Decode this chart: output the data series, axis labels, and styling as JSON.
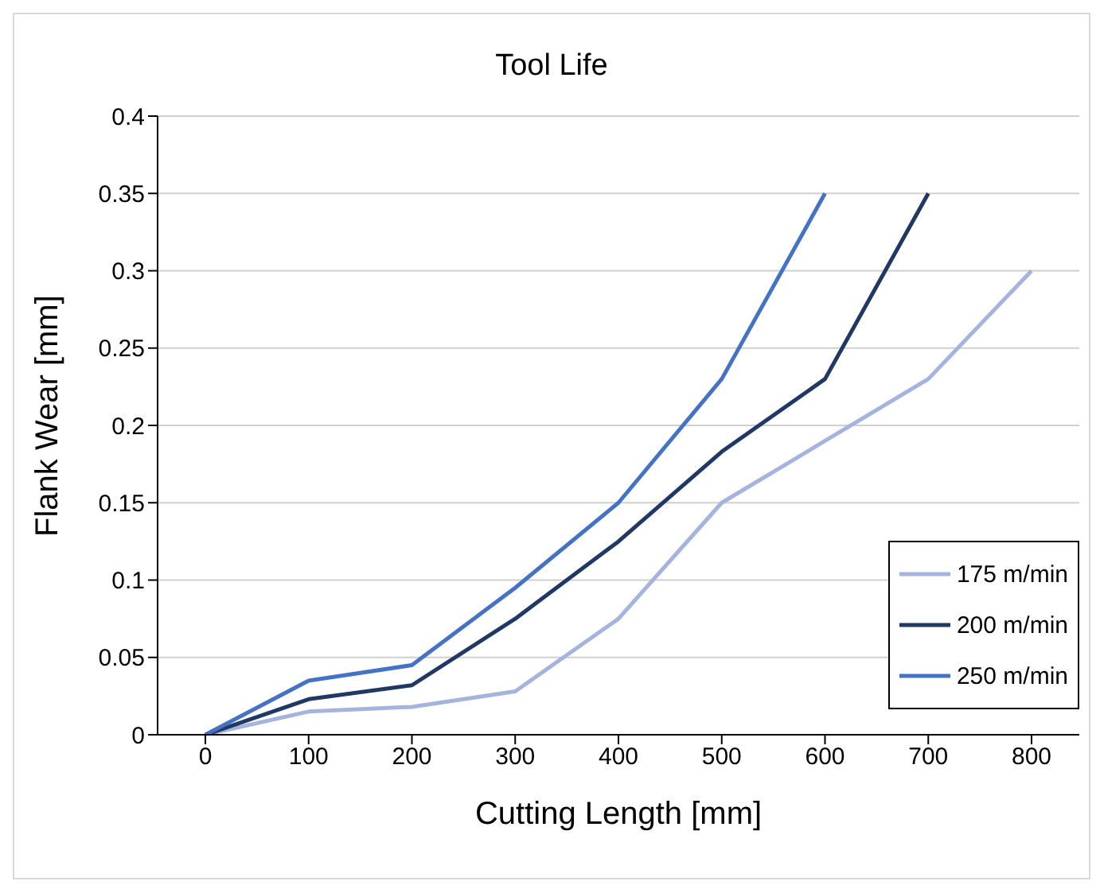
{
  "chart_data": {
    "type": "line",
    "title": "Tool Life",
    "xlabel": "Cutting Length [mm]",
    "ylabel": "Flank Wear [mm]",
    "categories": [
      "0",
      "100",
      "200",
      "300",
      "400",
      "500",
      "600",
      "700",
      "800"
    ],
    "series": [
      {
        "name": "175 m/min",
        "color": "#a5b4de",
        "values": [
          0,
          0.015,
          0.018,
          0.028,
          0.075,
          0.15,
          0.19,
          0.23,
          0.3
        ]
      },
      {
        "name": "200 m/min",
        "color": "#203864",
        "values": [
          0,
          0.023,
          0.032,
          0.075,
          0.125,
          0.183,
          0.23,
          0.35,
          null
        ]
      },
      {
        "name": "250 m/min",
        "color": "#4472c4",
        "values": [
          0,
          0.035,
          0.045,
          0.095,
          0.15,
          0.23,
          0.35,
          null,
          null
        ]
      }
    ],
    "ylim": [
      0,
      0.4
    ],
    "yticks": [
      0,
      0.05,
      0.1,
      0.15,
      0.2,
      0.25,
      0.3,
      0.35,
      0.4
    ],
    "grid": "y",
    "legend": "bottom right",
    "marker": "none",
    "line_style": "solid"
  }
}
